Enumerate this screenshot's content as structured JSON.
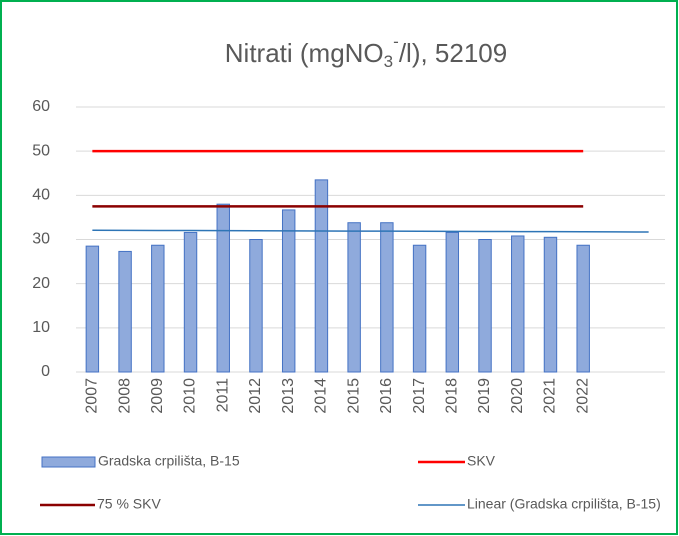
{
  "chart_data": {
    "type": "bar",
    "title": [
      "Nitrati (mgNO",
      "3",
      "-",
      "/l), 52109"
    ],
    "categories": [
      "2007",
      "2008",
      "2009",
      "2010",
      "2011",
      "2012",
      "2013",
      "2014",
      "2015",
      "2016",
      "2017",
      "2018",
      "2019",
      "2020",
      "2021",
      "2022",
      null,
      null
    ],
    "series": [
      {
        "name": "Gradska crpilišta,  B-15",
        "type": "bar",
        "color": "#8faadc",
        "values": [
          28.5,
          27.3,
          28.7,
          31.6,
          38,
          30,
          36.7,
          43.5,
          33.8,
          33.8,
          28.7,
          31.6,
          30,
          30.8,
          30.5,
          28.7,
          null,
          null
        ]
      },
      {
        "name": "SKV",
        "type": "line",
        "color": "#ff0000",
        "values": [
          50,
          50,
          50,
          50,
          50,
          50,
          50,
          50,
          50,
          50,
          50,
          50,
          50,
          50,
          50,
          50,
          null,
          null
        ]
      },
      {
        "name": "75 % SKV",
        "type": "line",
        "color": "#8b0000",
        "values": [
          37.5,
          37.5,
          37.5,
          37.5,
          37.5,
          37.5,
          37.5,
          37.5,
          37.5,
          37.5,
          37.5,
          37.5,
          37.5,
          37.5,
          37.5,
          37.5,
          null,
          null
        ]
      },
      {
        "name": "Linear (Gradska crpilišta,  B-15)",
        "type": "line",
        "color": "#2e75b6",
        "values": [
          32.1,
          32.08,
          32.05,
          32.03,
          32.0,
          31.98,
          31.96,
          31.93,
          31.91,
          31.89,
          31.86,
          31.84,
          31.82,
          31.79,
          31.77,
          31.75,
          31.72,
          31.7
        ]
      }
    ],
    "ylim": [
      0,
      60
    ],
    "yticks": [
      0,
      10,
      20,
      30,
      40,
      50,
      60
    ],
    "grid": true
  }
}
